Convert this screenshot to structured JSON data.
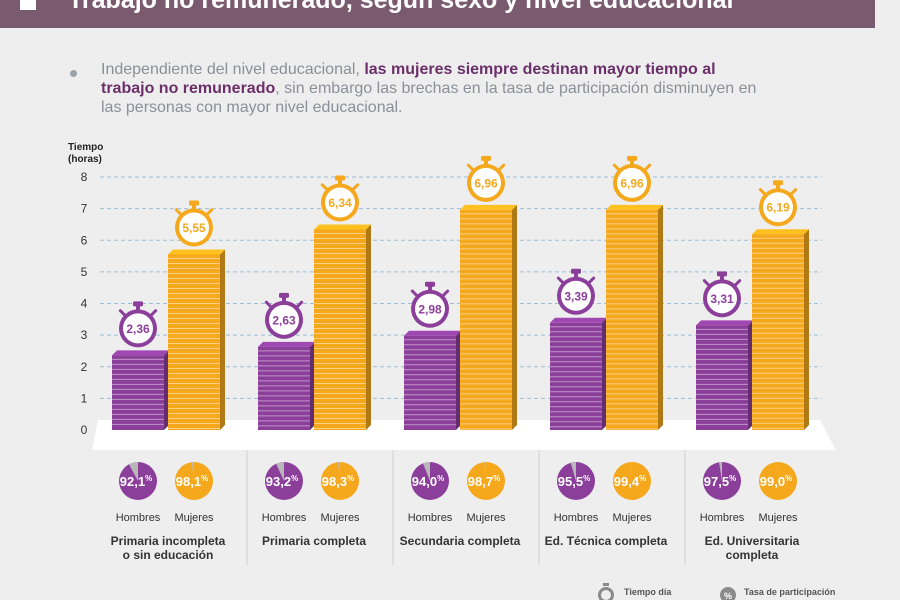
{
  "header": {
    "title": "Trabajo no remunerado, según sexo y nivel educacional"
  },
  "intro": {
    "text_before": "Independiente del nivel educacional, ",
    "text_bold": "las mujeres siempre destinan mayor tiempo al trabajo no remunerado",
    "text_after": ", sin embargo las brechas en la tasa de participación disminuyen en las personas con mayor nivel educacional."
  },
  "legend": {
    "time_label": "Tiempo día",
    "rate_label": "Tasa de participación"
  },
  "colors": {
    "hombres": "#8b3f9a",
    "mujeres": "#f5a81c",
    "header": "#7a5a6e"
  },
  "chart_data": {
    "type": "bar",
    "ylabel": "Tiempo (horas)",
    "ylim": [
      0,
      8
    ],
    "yticks": [
      "0",
      "1",
      "2",
      "3",
      "4",
      "5",
      "6",
      "7",
      "8"
    ],
    "grid": true,
    "series_labels": [
      "Hombres",
      "Mujeres"
    ],
    "groups": [
      {
        "label": "Primaria incompleta o sin educación",
        "hombres": {
          "value": 2.36,
          "label": "2,36",
          "rate": 92.1,
          "rate_label": "92,1"
        },
        "mujeres": {
          "value": 5.55,
          "label": "5,55",
          "rate": 98.1,
          "rate_label": "98,1"
        }
      },
      {
        "label": "Primaria completa",
        "hombres": {
          "value": 2.63,
          "label": "2,63",
          "rate": 93.2,
          "rate_label": "93,2"
        },
        "mujeres": {
          "value": 6.34,
          "label": "6,34",
          "rate": 98.3,
          "rate_label": "98,3"
        }
      },
      {
        "label": "Secundaria completa",
        "hombres": {
          "value": 2.98,
          "label": "2,98",
          "rate": 94.0,
          "rate_label": "94,0"
        },
        "mujeres": {
          "value": 6.96,
          "label": "6,96",
          "rate": 98.7,
          "rate_label": "98,7"
        }
      },
      {
        "label": "Ed. Técnica completa",
        "hombres": {
          "value": 3.39,
          "label": "3,39",
          "rate": 95.5,
          "rate_label": "95,5"
        },
        "mujeres": {
          "value": 6.96,
          "label": "6,96",
          "rate": 99.4,
          "rate_label": "99,4"
        }
      },
      {
        "label": "Ed. Universitaria completa",
        "hombres": {
          "value": 3.31,
          "label": "3,31",
          "rate": 97.5,
          "rate_label": "97,5"
        },
        "mujeres": {
          "value": 6.19,
          "label": "6,19",
          "rate": 99.0,
          "rate_label": "99,0"
        }
      }
    ]
  }
}
